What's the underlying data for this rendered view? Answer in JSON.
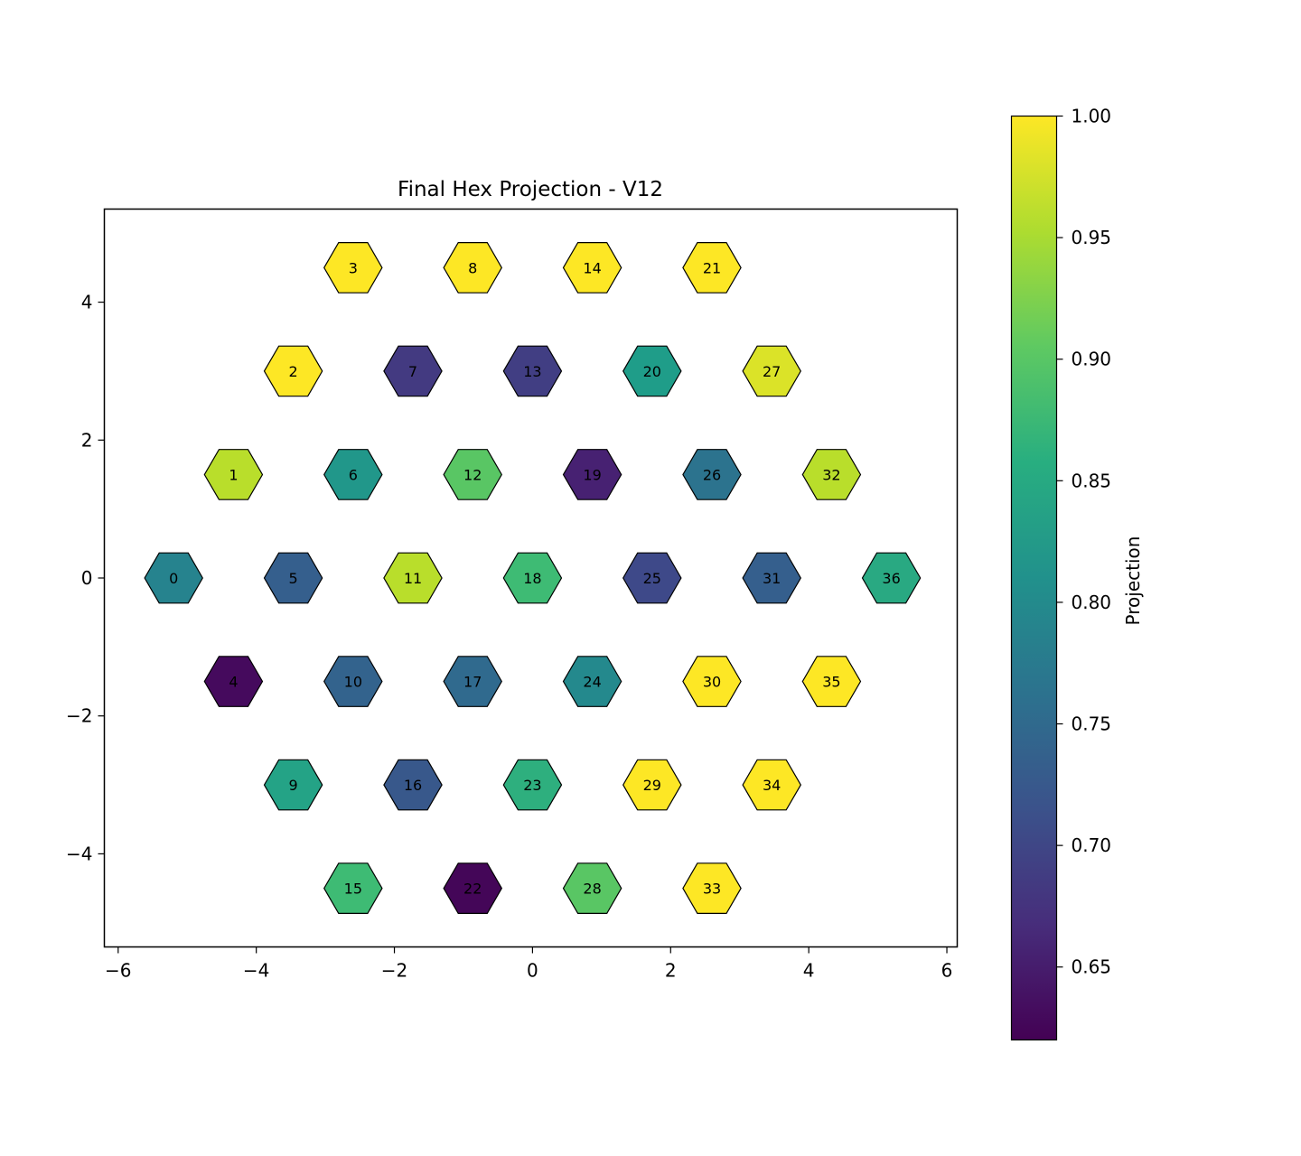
{
  "chart_data": {
    "type": "heatmap",
    "title": "Final Hex Projection - V12",
    "xlabel": "",
    "ylabel": "",
    "xlim": [
      -6.2,
      6.15
    ],
    "ylim": [
      -5.35,
      5.35
    ],
    "xticks": [
      -6,
      -4,
      -2,
      0,
      2,
      4,
      6
    ],
    "xtick_labels": [
      "−6",
      "−4",
      "−2",
      "0",
      "2",
      "4",
      "6"
    ],
    "yticks": [
      -4,
      -2,
      0,
      2,
      4
    ],
    "ytick_labels": [
      "−4",
      "−2",
      "0",
      "2",
      "4"
    ],
    "grid": false,
    "colormap": "viridis",
    "colorbar": {
      "label": "Projection",
      "range": [
        0.62,
        1.0
      ],
      "ticks": [
        0.65,
        0.7,
        0.75,
        0.8,
        0.85,
        0.9,
        0.95,
        1.0
      ],
      "tick_labels": [
        "0.65",
        "0.70",
        "0.75",
        "0.80",
        "0.85",
        "0.90",
        "0.95",
        "1.00"
      ]
    },
    "hexagons": [
      {
        "id": "0",
        "x": -5.196,
        "y": 0.0,
        "value": 0.79
      },
      {
        "id": "1",
        "x": -4.33,
        "y": 1.5,
        "value": 0.96
      },
      {
        "id": "2",
        "x": -3.464,
        "y": 3.0,
        "value": 1.0
      },
      {
        "id": "3",
        "x": -2.598,
        "y": 4.5,
        "value": 1.0
      },
      {
        "id": "4",
        "x": -4.33,
        "y": -1.5,
        "value": 0.63
      },
      {
        "id": "5",
        "x": -3.464,
        "y": 0.0,
        "value": 0.735
      },
      {
        "id": "6",
        "x": -2.598,
        "y": 1.5,
        "value": 0.82
      },
      {
        "id": "7",
        "x": -1.732,
        "y": 3.0,
        "value": 0.685
      },
      {
        "id": "8",
        "x": -0.866,
        "y": 4.5,
        "value": 1.0
      },
      {
        "id": "9",
        "x": -3.464,
        "y": -3.0,
        "value": 0.84
      },
      {
        "id": "10",
        "x": -2.598,
        "y": -1.5,
        "value": 0.74
      },
      {
        "id": "11",
        "x": -1.732,
        "y": 0.0,
        "value": 0.96
      },
      {
        "id": "12",
        "x": -0.866,
        "y": 1.5,
        "value": 0.9
      },
      {
        "id": "13",
        "x": 0.0,
        "y": 3.0,
        "value": 0.69
      },
      {
        "id": "14",
        "x": 0.866,
        "y": 4.5,
        "value": 1.0
      },
      {
        "id": "15",
        "x": -2.598,
        "y": -4.5,
        "value": 0.88
      },
      {
        "id": "16",
        "x": -1.732,
        "y": -3.0,
        "value": 0.725
      },
      {
        "id": "17",
        "x": -0.866,
        "y": -1.5,
        "value": 0.75
      },
      {
        "id": "18",
        "x": 0.0,
        "y": 0.0,
        "value": 0.88
      },
      {
        "id": "19",
        "x": 0.866,
        "y": 1.5,
        "value": 0.655
      },
      {
        "id": "20",
        "x": 1.732,
        "y": 3.0,
        "value": 0.83
      },
      {
        "id": "21",
        "x": 2.598,
        "y": 4.5,
        "value": 1.0
      },
      {
        "id": "22",
        "x": -0.866,
        "y": -4.5,
        "value": 0.625
      },
      {
        "id": "23",
        "x": 0.0,
        "y": -3.0,
        "value": 0.86
      },
      {
        "id": "24",
        "x": 0.866,
        "y": -1.5,
        "value": 0.8
      },
      {
        "id": "25",
        "x": 1.732,
        "y": 0.0,
        "value": 0.705
      },
      {
        "id": "26",
        "x": 2.598,
        "y": 1.5,
        "value": 0.765
      },
      {
        "id": "27",
        "x": 3.464,
        "y": 3.0,
        "value": 0.98
      },
      {
        "id": "28",
        "x": 0.866,
        "y": -4.5,
        "value": 0.9
      },
      {
        "id": "29",
        "x": 1.732,
        "y": -3.0,
        "value": 1.0
      },
      {
        "id": "30",
        "x": 2.598,
        "y": -1.5,
        "value": 1.0
      },
      {
        "id": "31",
        "x": 3.464,
        "y": 0.0,
        "value": 0.735
      },
      {
        "id": "32",
        "x": 4.33,
        "y": 1.5,
        "value": 0.96
      },
      {
        "id": "33",
        "x": 2.598,
        "y": -4.5,
        "value": 1.0
      },
      {
        "id": "34",
        "x": 3.464,
        "y": -3.0,
        "value": 1.0
      },
      {
        "id": "35",
        "x": 4.33,
        "y": -1.5,
        "value": 1.0
      },
      {
        "id": "36",
        "x": 5.196,
        "y": 0.0,
        "value": 0.85
      }
    ]
  }
}
